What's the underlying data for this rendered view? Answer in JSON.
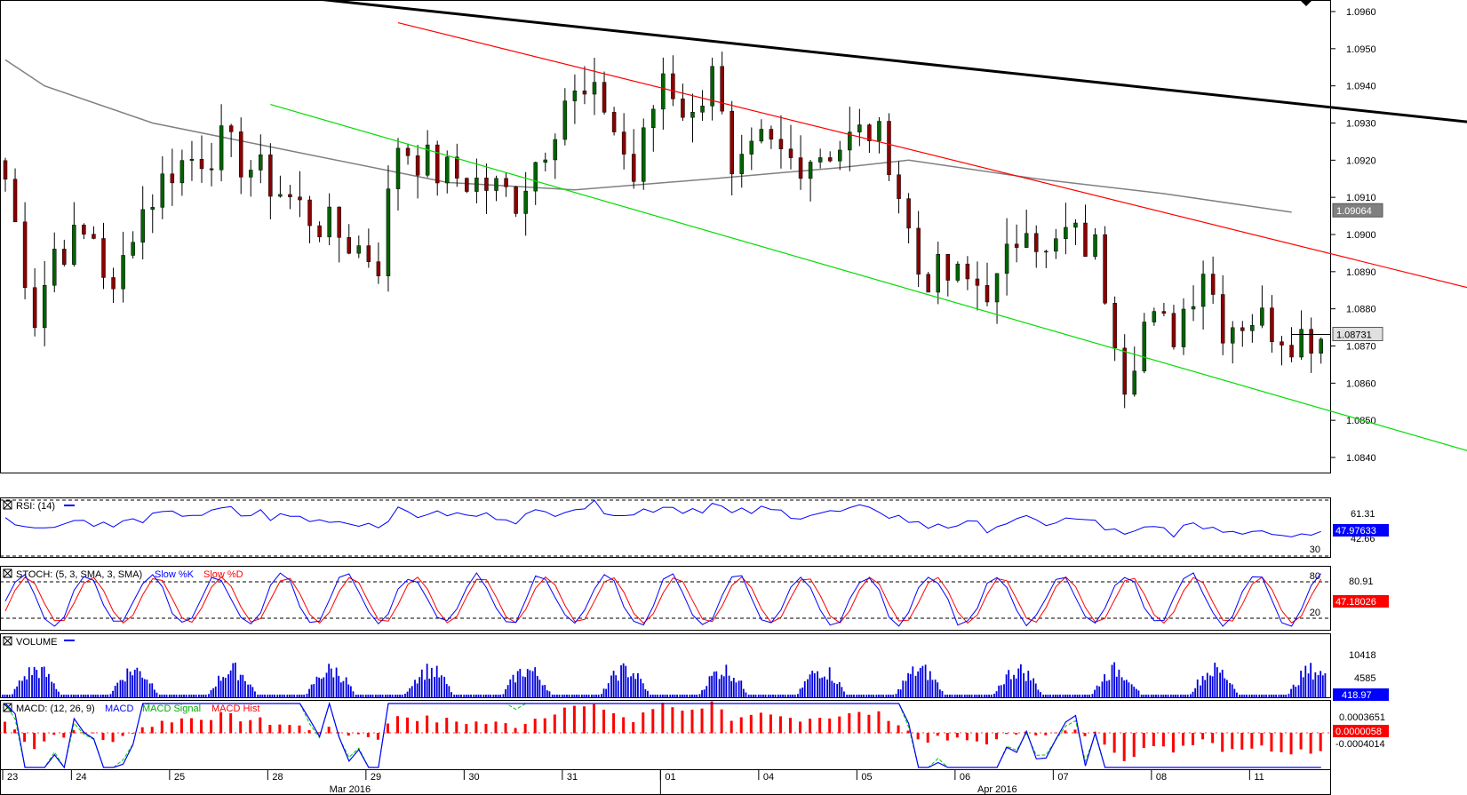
{
  "chart_data": {
    "type": "candlestick",
    "price_axis": {
      "ylim": [
        1.0833,
        1.0963
      ],
      "ticks": [
        "1.0960",
        "1.0950",
        "1.0940",
        "1.0930",
        "1.0920",
        "1.0910",
        "1.0900",
        "1.0890",
        "1.0880",
        "1.0870",
        "1.0860",
        "1.0850",
        "1.0840"
      ]
    },
    "price_badges": {
      "sma": "1.09064",
      "last": "1.08731"
    },
    "trendlines": [
      {
        "name": "black",
        "color": "#000000",
        "points": [
          [
            26,
            1.0965
          ],
          [
            150,
            1.093
          ]
        ]
      },
      {
        "name": "red",
        "color": "#ff0000",
        "points": [
          [
            40,
            1.0957
          ],
          [
            150,
            1.0885
          ]
        ]
      },
      {
        "name": "green",
        "color": "#00dd00",
        "points": [
          [
            27,
            1.0935
          ],
          [
            150,
            1.0841
          ]
        ]
      }
    ],
    "x_axis": {
      "days": [
        {
          "label": "23",
          "bar": 0
        },
        {
          "label": "24",
          "bar": 7
        },
        {
          "label": "25",
          "bar": 17
        },
        {
          "label": "28",
          "bar": 27
        },
        {
          "label": "29",
          "bar": 37
        },
        {
          "label": "30",
          "bar": 47
        },
        {
          "label": "31",
          "bar": 57
        },
        {
          "label": "01",
          "bar": 67
        },
        {
          "label": "04",
          "bar": 77
        },
        {
          "label": "05",
          "bar": 87
        },
        {
          "label": "06",
          "bar": 97
        },
        {
          "label": "07",
          "bar": 107
        },
        {
          "label": "08",
          "bar": 117
        },
        {
          "label": "11",
          "bar": 127
        }
      ],
      "months": [
        {
          "label": "Mar 2016",
          "bar": 33
        },
        {
          "label": "Apr 2016",
          "bar": 99
        }
      ],
      "month_separator_bar": 67
    },
    "panels": {
      "rsi": {
        "title": "RSI: (14)",
        "levels": [
          "61.31",
          "42.66"
        ],
        "line_labels": [
          "30"
        ],
        "badge": "47.97633"
      },
      "stoch": {
        "title": "STOCH: (5, 3, SMA, 3, SMA)",
        "series_names": [
          "Slow %K",
          "Slow %D"
        ],
        "levels": [
          "80.91"
        ],
        "line_labels": [
          "80",
          "20"
        ],
        "badge": "47.18026"
      },
      "volume": {
        "title": "VOLUME",
        "levels": [
          "10418",
          "4585"
        ],
        "badge": "418.97"
      },
      "macd": {
        "title": "MACD: (12, 26, 9)",
        "series_names": [
          "MACD",
          "MACD Signal",
          "MACD Hist"
        ],
        "levels": [
          "0.0003651",
          "-0.0004014"
        ],
        "badge": "0.0000058"
      }
    },
    "colors": {
      "up": "#006400",
      "down": "#8b0000",
      "sma": "#808080",
      "rsi": "#0000ff",
      "k": "#0000ff",
      "d": "#ff0000",
      "vol": "#0000dd",
      "macd": "#0000ff",
      "signal": "#00cc00",
      "hist": "#ff0000"
    }
  }
}
